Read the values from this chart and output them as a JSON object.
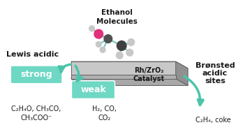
{
  "bg_color": "#ffffff",
  "ethanol_label": "Ethanol\nMolecules",
  "catalyst_label": "Rh/ZrO₂\nCatalyst",
  "lewis_label": "Lewis acidic",
  "bronsted_label": "Brønsted\nacidic\nsites",
  "strong_label": "strong",
  "weak_label": "weak",
  "left_products": "C₂H₄O, CH₃CO,\nCH₃COO⁻",
  "middle_products": "H₂, CO,\nCO₂",
  "right_products": "C₂H₄, coke",
  "box_color": "#6ed8c4",
  "arrow_color": "#4cc4aa",
  "text_color": "#1a1a1a",
  "slab_top_color": "#d8d8d8",
  "slab_front_color": "#808080",
  "slab_right_color": "#606060",
  "slab_edge_color": "#606060"
}
